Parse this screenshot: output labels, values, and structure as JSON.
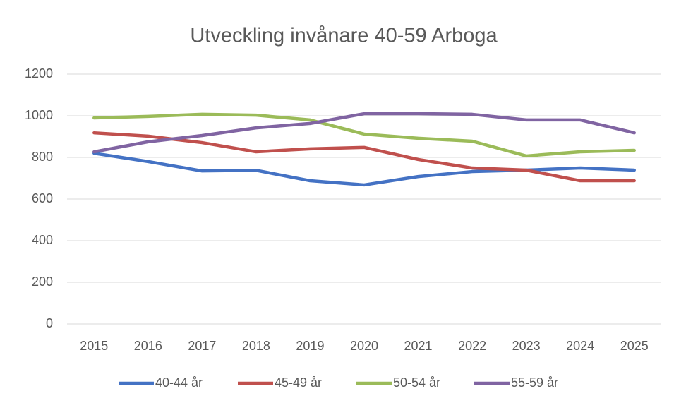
{
  "chart_data": {
    "type": "line",
    "title": "Utveckling invånare 40-59 Arboga",
    "categories": [
      "2015",
      "2016",
      "2017",
      "2018",
      "2019",
      "2020",
      "2021",
      "2022",
      "2023",
      "2024",
      "2025"
    ],
    "series": [
      {
        "name": "40-44 år",
        "color": "#4472c4",
        "values": [
          820,
          780,
          735,
          738,
          688,
          668,
          708,
          732,
          739,
          749,
          739
        ]
      },
      {
        "name": "45-49 år",
        "color": "#c0504d",
        "values": [
          918,
          902,
          871,
          827,
          841,
          848,
          790,
          749,
          739,
          688,
          688
        ]
      },
      {
        "name": "50-54 år",
        "color": "#9bbb59",
        "values": [
          990,
          997,
          1007,
          1003,
          980,
          912,
          892,
          878,
          807,
          827,
          834
        ]
      },
      {
        "name": "55-59 år",
        "color": "#8064a2",
        "values": [
          827,
          875,
          905,
          942,
          963,
          1010,
          1010,
          1007,
          980,
          980,
          918
        ]
      }
    ],
    "ylim": [
      0,
      1200
    ],
    "yticks": [
      0,
      200,
      400,
      600,
      800,
      1000,
      1200
    ],
    "grid": true,
    "legend": "bottom"
  }
}
